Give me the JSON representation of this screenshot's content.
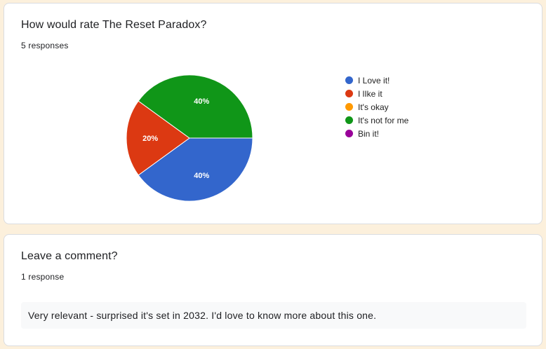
{
  "question1": {
    "title": "How would rate The Reset Paradox?",
    "responses": "5 responses"
  },
  "chart_data": {
    "type": "pie",
    "categories": [
      "I Love it!",
      "I like it",
      "It's okay",
      "It's not for me",
      "Bin it!"
    ],
    "legend": [
      "I Love it!",
      "I lIke it",
      "It's okay",
      "It's not for me",
      "Bin it!"
    ],
    "values": [
      2,
      1,
      0,
      2,
      0
    ],
    "slice_labels": [
      "40%",
      "20%",
      "",
      "40%",
      ""
    ],
    "colors": [
      "#3366cc",
      "#dc3912",
      "#ff9900",
      "#109618",
      "#990099"
    ],
    "legend_position": "right"
  },
  "question2": {
    "title": "Leave a comment?",
    "responses": "1 response",
    "comments": [
      "Very relevant - surprised it's set in 2032. I'd love to know more about this one."
    ]
  }
}
